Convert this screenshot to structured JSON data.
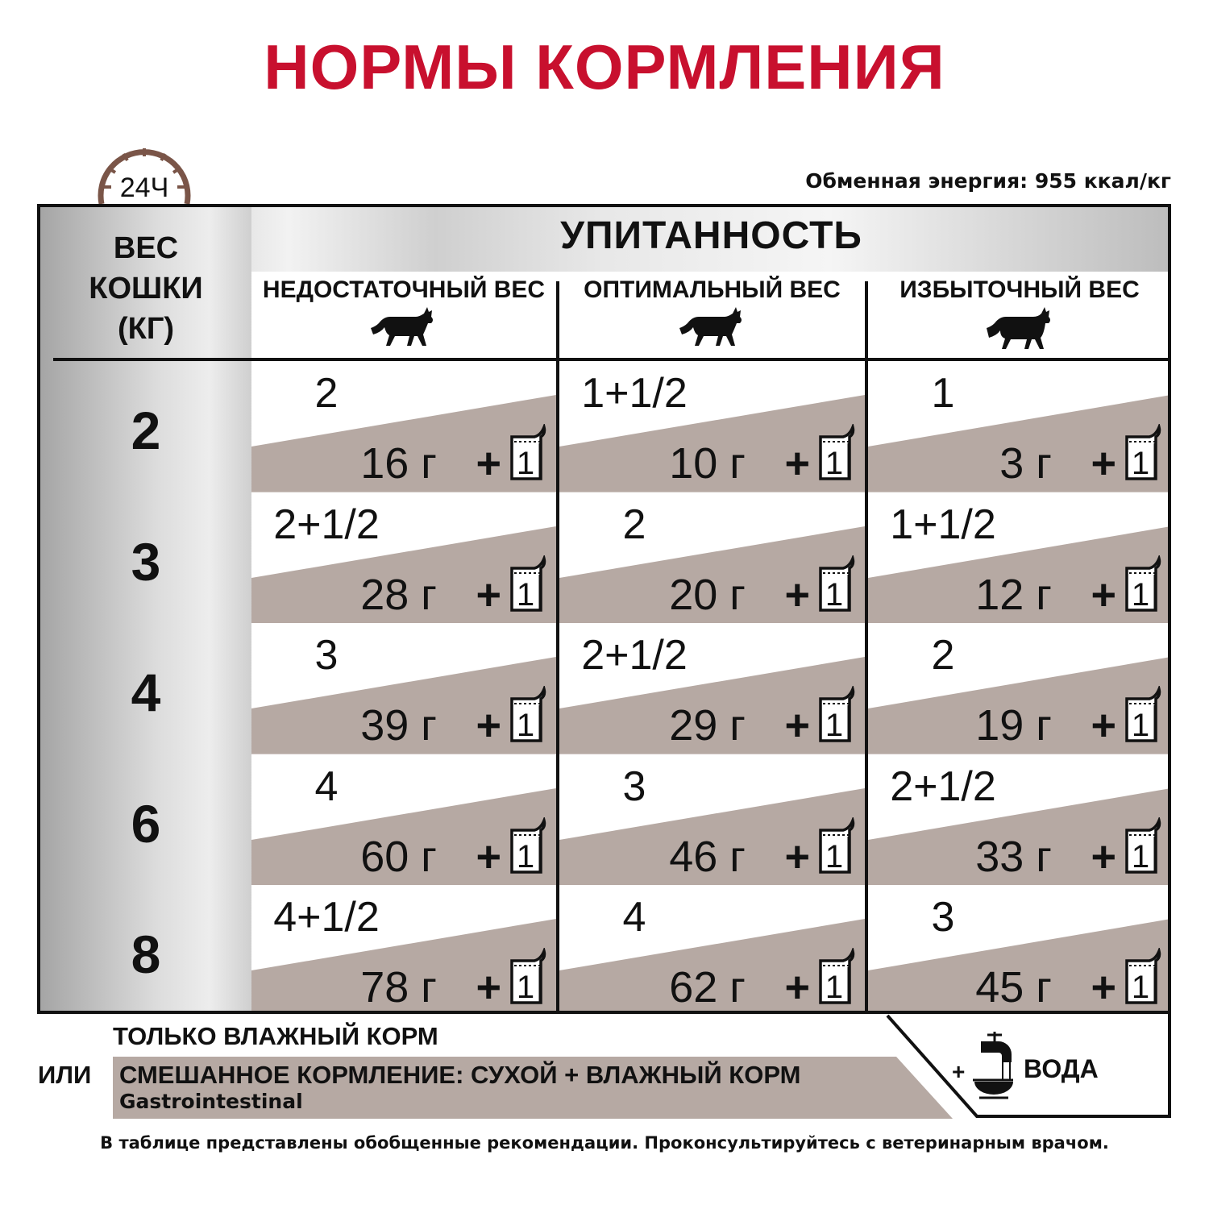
{
  "title": "НОРМЫ КОРМЛЕНИЯ",
  "clock_label": "24Ч",
  "energy": "Обменная энергия: 955 ккал/кг",
  "table": {
    "weight_header": [
      "ВЕС",
      "КОШКИ",
      "(КГ)"
    ],
    "condition_header": "УПИТАННОСТЬ",
    "columns": [
      "НЕДОСТАТОЧНЫЙ ВЕС",
      "ОПТИМАЛЬНЫЙ ВЕС",
      "ИЗБЫТОЧНЫЙ ВЕС"
    ],
    "plus": "+",
    "pouch_count": "1",
    "rows": [
      {
        "weight": "2",
        "cells": [
          {
            "pouches": "2",
            "grams": "16 г"
          },
          {
            "pouches": "1+1/2",
            "grams": "10 г"
          },
          {
            "pouches": "1",
            "grams": "3 г"
          }
        ]
      },
      {
        "weight": "3",
        "cells": [
          {
            "pouches": "2+1/2",
            "grams": "28 г"
          },
          {
            "pouches": "2",
            "grams": "20 г"
          },
          {
            "pouches": "1+1/2",
            "grams": "12 г"
          }
        ]
      },
      {
        "weight": "4",
        "cells": [
          {
            "pouches": "3",
            "grams": "39 г"
          },
          {
            "pouches": "2+1/2",
            "grams": "29 г"
          },
          {
            "pouches": "2",
            "grams": "19 г"
          }
        ]
      },
      {
        "weight": "6",
        "cells": [
          {
            "pouches": "4",
            "grams": "60 г"
          },
          {
            "pouches": "3",
            "grams": "46 г"
          },
          {
            "pouches": "2+1/2",
            "grams": "33 г"
          }
        ]
      },
      {
        "weight": "8",
        "cells": [
          {
            "pouches": "4+1/2",
            "grams": "78 г"
          },
          {
            "pouches": "4",
            "grams": "62 г"
          },
          {
            "pouches": "3",
            "grams": "45 г"
          }
        ]
      }
    ]
  },
  "bottom": {
    "only_wet": "ТОЛЬКО ВЛАЖНЫЙ КОРМ",
    "or": "ИЛИ",
    "mixed": "СМЕШАННОЕ КОРМЛЕНИЕ: СУХОЙ + ВЛАЖНЫЙ КОРМ",
    "product": "Gastrointestinal",
    "water_plus": "+",
    "water": "ВОДА"
  },
  "footer": "В таблице представлены обобщенные рекомендации. Проконсультируйтесь с ветеринарным врачом.",
  "colors": {
    "title": "#c8102e",
    "taupe": "#b6a9a3",
    "clock": "#7a5548"
  }
}
